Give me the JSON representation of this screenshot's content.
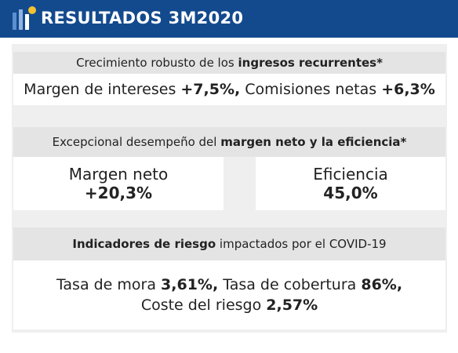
{
  "header": {
    "title": "RESULTADOS 3M2020"
  },
  "sections": [
    {
      "heading": {
        "text": "Crecimiento robusto de los",
        "bold": "ingresos recurrentes*"
      },
      "line": {
        "label1": "Margen de intereses",
        "value1": "+7,5%,",
        "label2": "Comisiones netas",
        "value2": "+6,3%"
      }
    },
    {
      "heading": {
        "text": "Excepcional desempeño del",
        "bold": "margen neto y la eficiencia*"
      },
      "boxes": [
        {
          "label": "Margen neto",
          "value": "+20,3%"
        },
        {
          "label": "Eficiencia",
          "value": "45,0%"
        }
      ]
    },
    {
      "heading": {
        "bold": "Indicadores de riesgo",
        "text": "impactados por el COVID-19"
      },
      "lines": {
        "label1": "Tasa de mora",
        "value1": "3,61%,",
        "label2": "Tasa de cobertura",
        "value2": "86%,",
        "label3": "Coste del riesgo",
        "value3": "2,57%"
      }
    }
  ]
}
